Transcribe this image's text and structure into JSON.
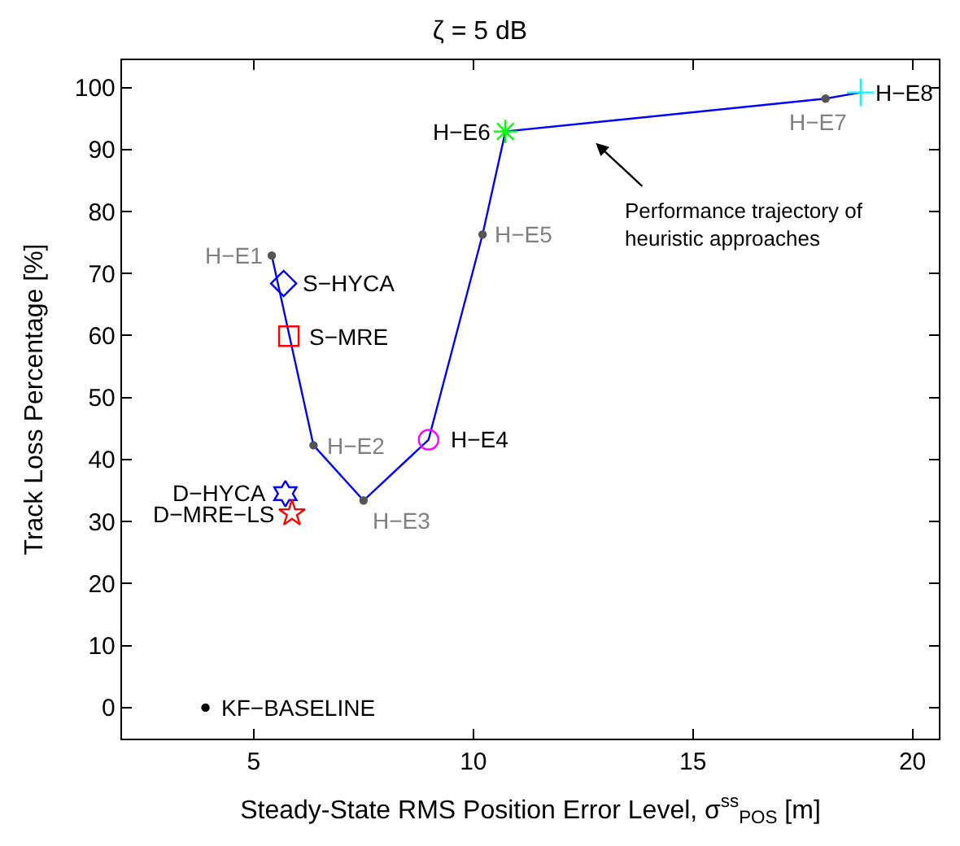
{
  "chart_data": {
    "type": "scatter",
    "title": "ζ = 5 dB",
    "xlabel": "Steady-State RMS Position Error Level, σ$^{ss}$$_{POS}$ [m]",
    "ylabel": "Track Loss Percentage [%]",
    "xlim": [
      2,
      20.6
    ],
    "ylim": [
      -5,
      104.4
    ],
    "xticks": [
      5,
      10,
      15,
      20
    ],
    "yticks": [
      0,
      10,
      20,
      30,
      40,
      50,
      60,
      70,
      80,
      90,
      100
    ],
    "series": [
      {
        "type": "line",
        "color": "#0000ff",
        "marker": "none",
        "x": [
          5.41,
          6.36,
          7.5,
          8.98,
          10.21,
          10.73,
          18.02,
          18.82
        ],
        "values": [
          72.9,
          42.3,
          33.4,
          43.2,
          76.3,
          92.9,
          98.2,
          99.2
        ]
      },
      {
        "color": "#555555",
        "marker": "circle",
        "x": [
          5.41,
          6.36,
          7.5,
          10.21,
          18.02
        ],
        "values": [
          72.9,
          42.3,
          33.4,
          76.3,
          98.2
        ]
      },
      {
        "color": "#ff00ff",
        "marker": "circle",
        "x": [
          8.98
        ],
        "values": [
          43.2
        ]
      },
      {
        "color": "#00ff00",
        "marker": "cross",
        "x": [
          10.73
        ],
        "values": [
          92.9
        ]
      },
      {
        "color": "#00ffff",
        "marker": "cross",
        "x": [
          18.82
        ],
        "values": [
          99.2
        ]
      },
      {
        "color": "#0000ff",
        "marker": "diamond",
        "x": [
          5.68
        ],
        "values": [
          68.4
        ]
      },
      {
        "color": "#ff0000",
        "marker": "square",
        "x": [
          5.8
        ],
        "values": [
          59.9
        ]
      },
      {
        "color": "#0000ff",
        "marker": "cross",
        "x": [
          5.72
        ],
        "values": [
          34.5
        ]
      },
      {
        "color": "#ff0000",
        "marker": "star",
        "x": [
          5.87
        ],
        "values": [
          31.3
        ]
      },
      {
        "color": "#000000",
        "marker": "circle",
        "x": [
          3.9
        ],
        "values": [
          0
        ]
      }
    ],
    "annotations": [
      {
        "text": "H−E1",
        "x": 5.41,
        "y": 72.9
      },
      {
        "text": "H−E2",
        "x": 6.36,
        "y": 42.3
      },
      {
        "text": "H−E3",
        "x": 7.5,
        "y": 33.4
      },
      {
        "text": "H−E4",
        "x": 8.98,
        "y": 43.2
      },
      {
        "text": "H−E5",
        "x": 10.21,
        "y": 76.3
      },
      {
        "text": "H−E6",
        "x": 10.73,
        "y": 92.9
      },
      {
        "text": "H−E7",
        "x": 18.02,
        "y": 98.2
      },
      {
        "text": "H−E8",
        "x": 18.82,
        "y": 99.2
      },
      {
        "text": "S−HYCA",
        "x": 5.68,
        "y": 68.4
      },
      {
        "text": "S−MRE",
        "x": 5.8,
        "y": 59.9
      },
      {
        "text": "D−HYCA",
        "x": 5.72,
        "y": 34.5
      },
      {
        "text": "D−MRE−LS",
        "x": 5.87,
        "y": 31.3
      },
      {
        "text": "KF−BASELINE",
        "x": 3.9,
        "y": 0
      },
      "Performance trajectory of\nheuristic approaches"
    ]
  }
}
